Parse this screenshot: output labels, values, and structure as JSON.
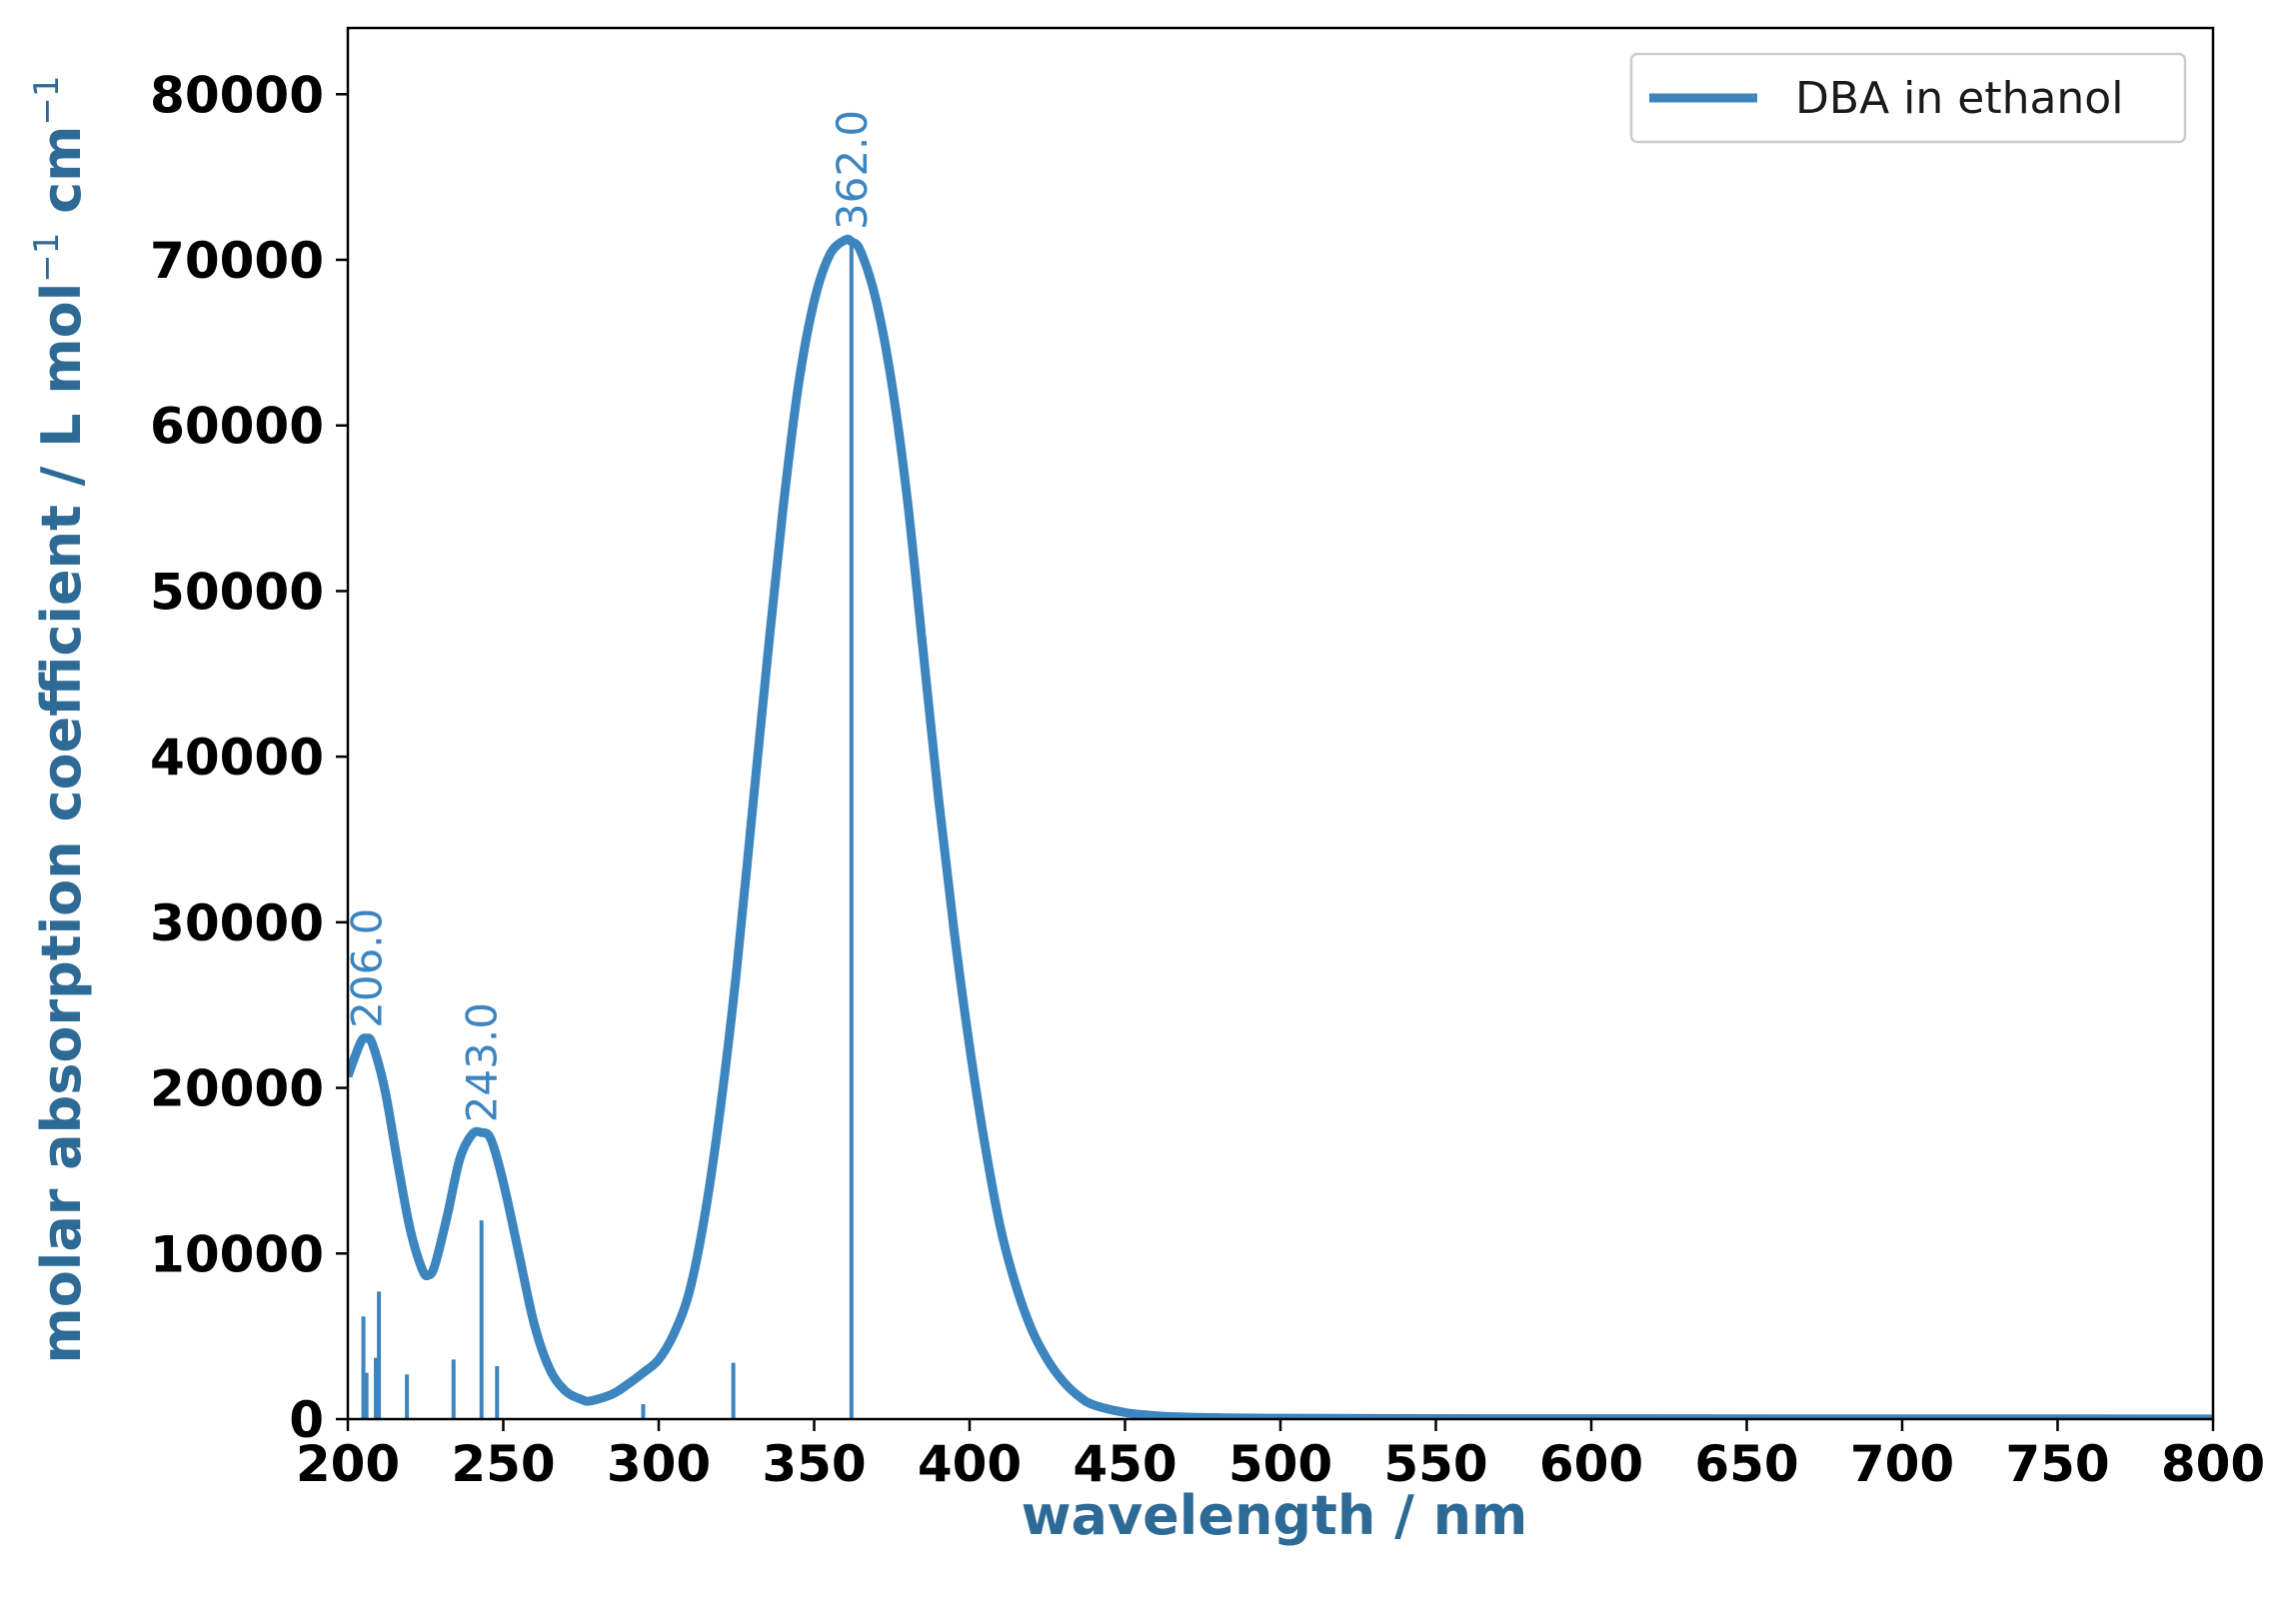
{
  "chart_data": {
    "type": "line",
    "xlabel": "wavelength / nm",
    "ylabel_text": "molar absorption coefficient / L mol",
    "ylabel_unit_1": "L mol",
    "ylabel_unit_2": "cm",
    "ylabel_exponent": "−1",
    "xlim": [
      200,
      800
    ],
    "ylim": [
      0,
      84000
    ],
    "x_ticks": [
      200,
      250,
      300,
      350,
      400,
      450,
      500,
      550,
      600,
      650,
      700,
      750,
      800
    ],
    "y_ticks": [
      0,
      10000,
      20000,
      30000,
      40000,
      50000,
      60000,
      70000,
      80000
    ],
    "grid": false,
    "legend": {
      "position": "top-right",
      "entries": [
        "DBA in ethanol"
      ]
    },
    "series": [
      {
        "name": "DBA in ethanol",
        "color": "#3d85bf",
        "x": [
          200,
          204,
          206,
          208,
          212,
          216,
          220,
          224,
          226,
          228,
          232,
          236,
          240,
          243,
          246,
          250,
          255,
          260,
          265,
          270,
          275,
          278,
          285,
          290,
          295,
          300,
          305,
          310,
          315,
          320,
          325,
          330,
          335,
          340,
          345,
          350,
          355,
          360,
          362,
          365,
          370,
          375,
          380,
          385,
          390,
          395,
          400,
          405,
          410,
          415,
          420,
          425,
          430,
          435,
          440,
          450,
          460,
          470,
          480,
          500,
          550,
          600,
          700,
          800
        ],
        "y": [
          20700,
          22700,
          23000,
          22600,
          19800,
          15500,
          11500,
          9000,
          8700,
          9300,
          12300,
          15700,
          17200,
          17300,
          16900,
          14300,
          10000,
          5700,
          3000,
          1700,
          1200,
          1100,
          1500,
          2100,
          2800,
          3600,
          5200,
          7800,
          12500,
          19000,
          27000,
          36500,
          46000,
          55000,
          62500,
          67500,
          70300,
          71200,
          71100,
          70500,
          67500,
          62500,
          55500,
          46500,
          37500,
          29500,
          22500,
          16500,
          11500,
          8000,
          5400,
          3600,
          2300,
          1400,
          850,
          400,
          200,
          120,
          80,
          50,
          30,
          20,
          15,
          10
        ]
      }
    ],
    "sticks": {
      "color": "#3d85bf",
      "x": [
        205,
        206,
        209,
        210,
        219,
        234,
        243,
        248,
        295,
        324,
        362
      ],
      "y": [
        6200,
        2800,
        3700,
        7700,
        2700,
        3600,
        12000,
        3200,
        900,
        3400,
        71000
      ]
    },
    "annotations": [
      {
        "x": 206,
        "y": 23000,
        "text": "206.0"
      },
      {
        "x": 243,
        "y": 17300,
        "text": "243.0"
      },
      {
        "x": 362,
        "y": 71200,
        "text": "362.0"
      }
    ],
    "colors": {
      "line": "#3d85bf",
      "axis_title": "#2e6a96",
      "peak_label": "#3d85bf"
    }
  }
}
